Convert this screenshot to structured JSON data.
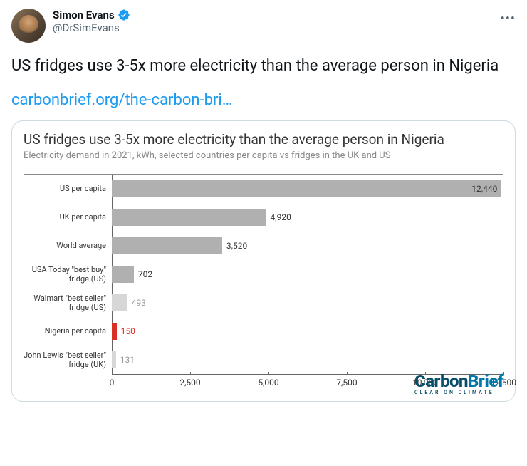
{
  "tweet": {
    "author": {
      "display_name": "Simon Evans",
      "handle": "@DrSimEvans",
      "verified": true,
      "verified_color": "#1d9bf0"
    },
    "text": "US fridges use 3-5x more electricity than the average person in Nigeria",
    "link_text": "carbonbrief.org/the-carbon-bri…",
    "link_color": "#1d9bf0"
  },
  "chart": {
    "type": "bar-horizontal",
    "title": "US fridges use 3-5x more electricity than the average person in Nigeria",
    "subtitle": "Electricity demand in 2021, kWh, selected countries per capita vs fridges in the UK and US",
    "x_axis": {
      "min": 0,
      "max": 12500,
      "ticks": [
        0,
        2500,
        5000,
        7500,
        10000,
        12500
      ],
      "tick_labels": [
        "0",
        "2,500",
        "5,000",
        "7,500",
        "10,000",
        "12,500"
      ]
    },
    "bars": [
      {
        "label": "US per capita",
        "value": 12440,
        "value_label": "12,440",
        "color": "#b0b0b0",
        "label_pos": "inside",
        "value_color": "#333"
      },
      {
        "label": "UK per capita",
        "value": 4920,
        "value_label": "4,920",
        "color": "#b0b0b0",
        "label_pos": "outside",
        "value_color": "#333"
      },
      {
        "label": "World average",
        "value": 3520,
        "value_label": "3,520",
        "color": "#b0b0b0",
        "label_pos": "outside",
        "value_color": "#333"
      },
      {
        "label": "USA Today \"best buy\" fridge (US)",
        "value": 702,
        "value_label": "702",
        "color": "#b0b0b0",
        "label_pos": "outside",
        "value_color": "#333"
      },
      {
        "label": "Walmart \"best seller\" fridge (US)",
        "value": 493,
        "value_label": "493",
        "color": "#d7d7d7",
        "label_pos": "outside",
        "value_color": "#999"
      },
      {
        "label": "Nigeria per capita",
        "value": 150,
        "value_label": "150",
        "color": "#d93025",
        "label_pos": "outside",
        "value_color": "#d93025"
      },
      {
        "label": "John Lewis \"best seller\" fridge (UK)",
        "value": 131,
        "value_label": "131",
        "color": "#d7d7d7",
        "label_pos": "outside",
        "value_color": "#999"
      }
    ],
    "brand": {
      "name_part1": "Carbon",
      "name_part2": "Brief",
      "tagline": "CLEAR ON CLIMATE",
      "color_primary": "#0a4d68",
      "color_secondary": "#0077a8"
    },
    "background_color": "#ffffff"
  }
}
